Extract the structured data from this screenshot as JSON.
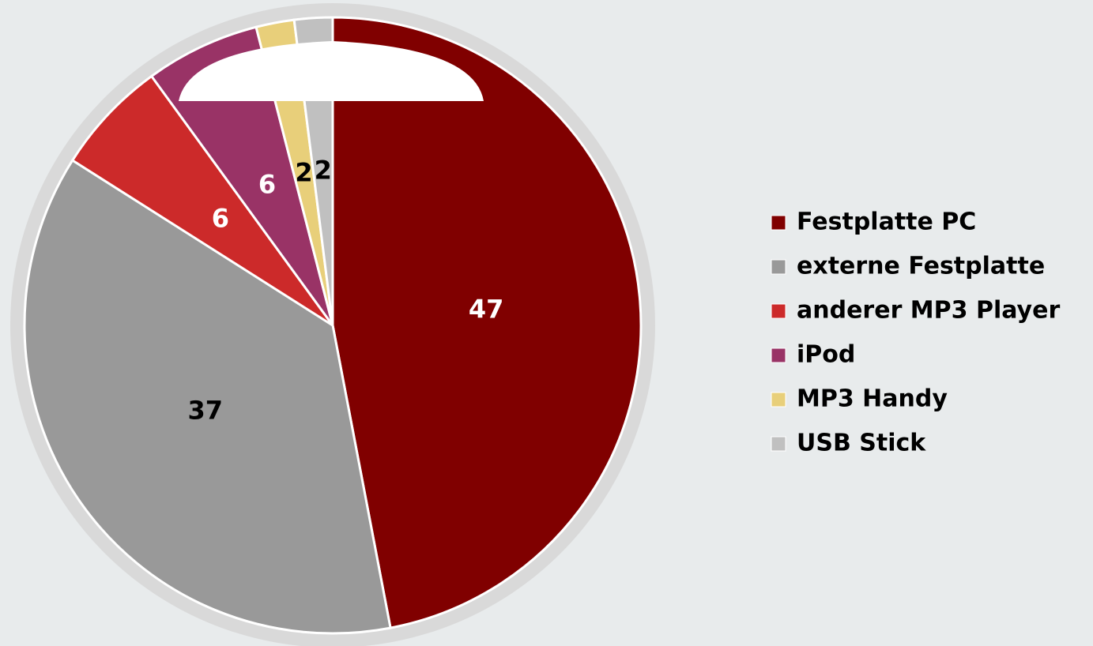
{
  "chart_data": {
    "type": "pie",
    "categories": [
      "Festplatte PC",
      "externe Festplatte",
      "anderer MP3 Player",
      "iPod",
      "MP3 Handy",
      "USB Stick"
    ],
    "values": [
      47,
      37,
      6,
      6,
      2,
      2
    ],
    "colors": [
      "#800000",
      "#999999",
      "#cc2a2a",
      "#993366",
      "#e8cf7a",
      "#c0c0c0"
    ],
    "label_colors": [
      "#ffffff",
      "#000000",
      "#ffffff",
      "#ffffff",
      "#000000",
      "#000000"
    ],
    "legend": "right"
  }
}
